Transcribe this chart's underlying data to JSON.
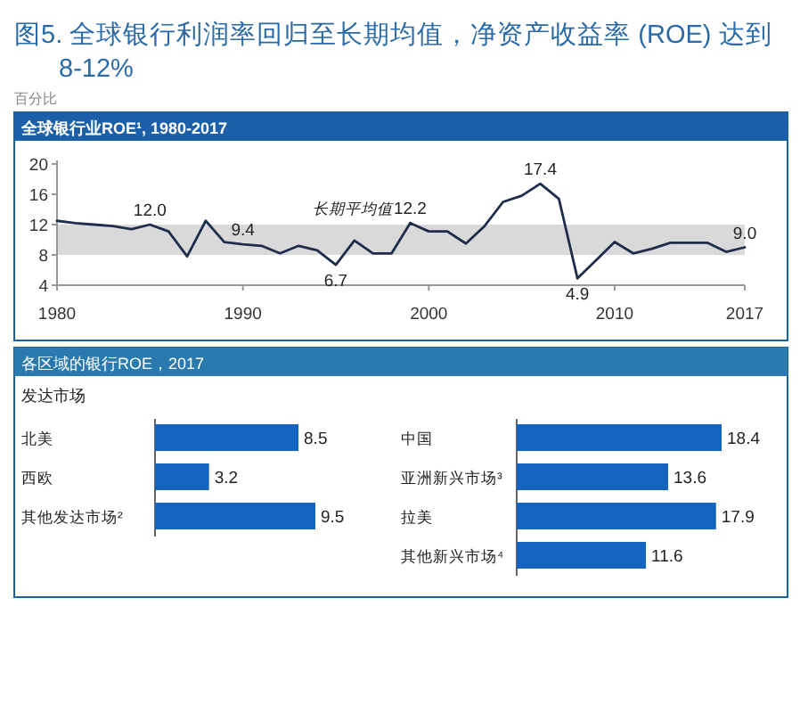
{
  "chart_data": [
    {
      "type": "other",
      "title": "图5. 全球银行利润率回归至长期均值，净资产收益率 (ROE) 达到 8-12%",
      "subtitle": "百分比"
    },
    {
      "type": "line",
      "title": "全球银行业ROE¹, 1980-2017",
      "x": [
        1980,
        1981,
        1982,
        1983,
        1984,
        1985,
        1986,
        1987,
        1988,
        1989,
        1990,
        1991,
        1992,
        1993,
        1994,
        1995,
        1996,
        1997,
        1998,
        1999,
        2000,
        2001,
        2002,
        2003,
        2004,
        2005,
        2006,
        2007,
        2008,
        2009,
        2010,
        2011,
        2012,
        2013,
        2014,
        2015,
        2016,
        2017
      ],
      "series": [
        {
          "color": "#1f2d4d",
          "values": [
            12.5,
            12.2,
            12.0,
            11.8,
            11.4,
            12.0,
            11.1,
            7.8,
            12.5,
            9.7,
            9.4,
            9.2,
            8.2,
            9.2,
            8.6,
            6.7,
            9.9,
            8.2,
            8.2,
            12.2,
            11.1,
            11.1,
            9.5,
            11.8,
            15.0,
            15.8,
            17.4,
            15.4,
            4.9,
            7.3,
            9.7,
            8.2,
            8.8,
            9.6,
            9.6,
            9.6,
            8.4,
            9.0
          ],
          "value_labels": [
            null,
            null,
            null,
            null,
            null,
            "12.0",
            null,
            null,
            null,
            null,
            "9.4",
            null,
            null,
            null,
            null,
            "6.7",
            null,
            null,
            null,
            "12.2",
            null,
            null,
            null,
            null,
            null,
            null,
            "17.4",
            null,
            "4.9",
            null,
            null,
            null,
            null,
            null,
            null,
            null,
            null,
            "9.0"
          ]
        }
      ],
      "xlim": [
        1980,
        2017
      ],
      "xticks": [
        1980,
        1990,
        2000,
        2010,
        2017
      ],
      "ylim": [
        4,
        20
      ],
      "yticks": [
        4,
        8,
        12,
        16,
        20
      ],
      "bands": [
        {
          "axis": "y",
          "from": 8,
          "to": 12,
          "label": "长期平均值",
          "color": "#d9d9d9"
        }
      ],
      "grid": false
    },
    {
      "type": "bar",
      "orientation": "horizontal",
      "title": "各区域的银行ROE，2017",
      "subtitle": "发达市场",
      "categories": [
        "北美",
        "西欧",
        "其他发达市场²"
      ],
      "values": [
        8.5,
        3.2,
        9.5
      ],
      "color": "#1565c0",
      "data_labels": true
    },
    {
      "type": "bar",
      "orientation": "horizontal",
      "categories": [
        "中国",
        "亚洲新兴市场³",
        "拉美",
        "其他新兴市场⁴"
      ],
      "values": [
        18.4,
        13.6,
        17.9,
        11.6
      ],
      "color": "#1565c0",
      "data_labels": true
    }
  ]
}
